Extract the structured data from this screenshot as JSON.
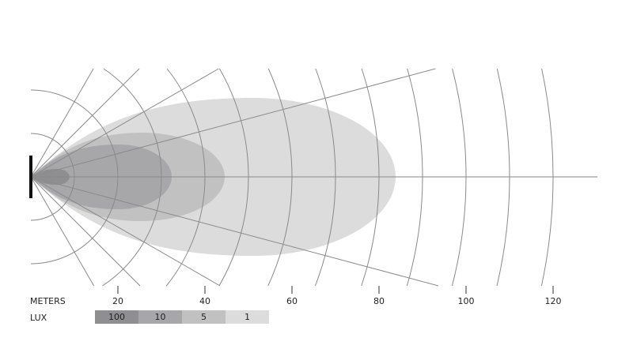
{
  "axis": {
    "label": "METERS",
    "ticks": [
      "20",
      "40",
      "60",
      "80",
      "100",
      "120"
    ],
    "tick_values": [
      20,
      40,
      60,
      80,
      100,
      120
    ]
  },
  "legend": {
    "label": "LUX",
    "items": [
      {
        "label": "100",
        "color": "#8f8f91"
      },
      {
        "label": "10",
        "color": "#a7a7a9"
      },
      {
        "label": "5",
        "color": "#c1c1c2"
      },
      {
        "label": "1",
        "color": "#dcdcdd"
      }
    ]
  },
  "grid": {
    "ring_step_m": 10,
    "ring_max_m": 120,
    "ray_angles_deg": [
      -60,
      -45,
      -30,
      -15,
      0,
      15,
      30,
      45,
      60
    ],
    "color": "#8a8a8a"
  }
}
